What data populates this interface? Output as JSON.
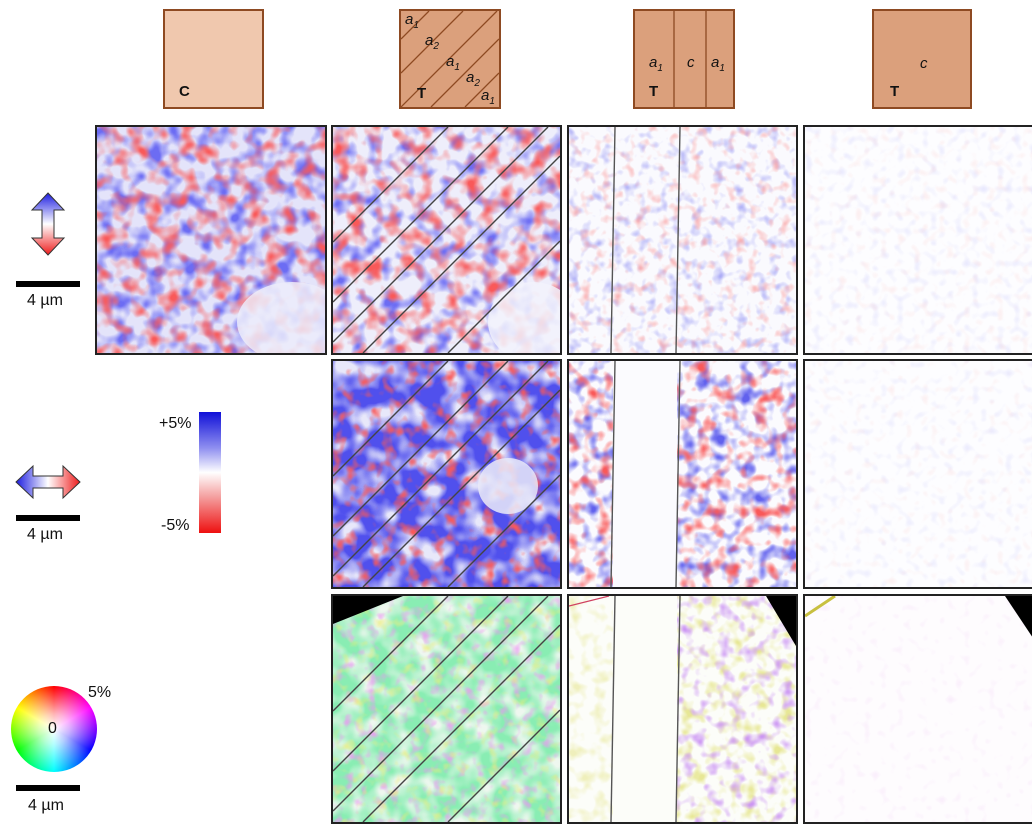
{
  "schematics": [
    {
      "phase": "C",
      "domains": []
    },
    {
      "phase": "T",
      "domains": [
        "a1",
        "a2",
        "a1",
        "a2",
        "a1"
      ]
    },
    {
      "phase": "T",
      "domains": [
        "a1",
        "c",
        "a1"
      ]
    },
    {
      "phase": "T",
      "domains": [
        "c"
      ]
    }
  ],
  "domain_labels": {
    "a1_base": "a",
    "a1_sub": "1",
    "a2_base": "a",
    "a2_sub": "2",
    "c": "c"
  },
  "scale_bar_label": "4 µm",
  "colorbar": {
    "max_label": "+5%",
    "min_label": "-5%",
    "colors": {
      "max": "#1010d8",
      "mid": "#ffffff",
      "min": "#ee1010"
    }
  },
  "color_wheel": {
    "center_label": "0",
    "edge_label": "5%"
  },
  "colors": {
    "schematic_fill_cubic": "#f0c8ae",
    "schematic_fill_tetragonal": "#dba07c",
    "schematic_border": "#8e4a22"
  }
}
